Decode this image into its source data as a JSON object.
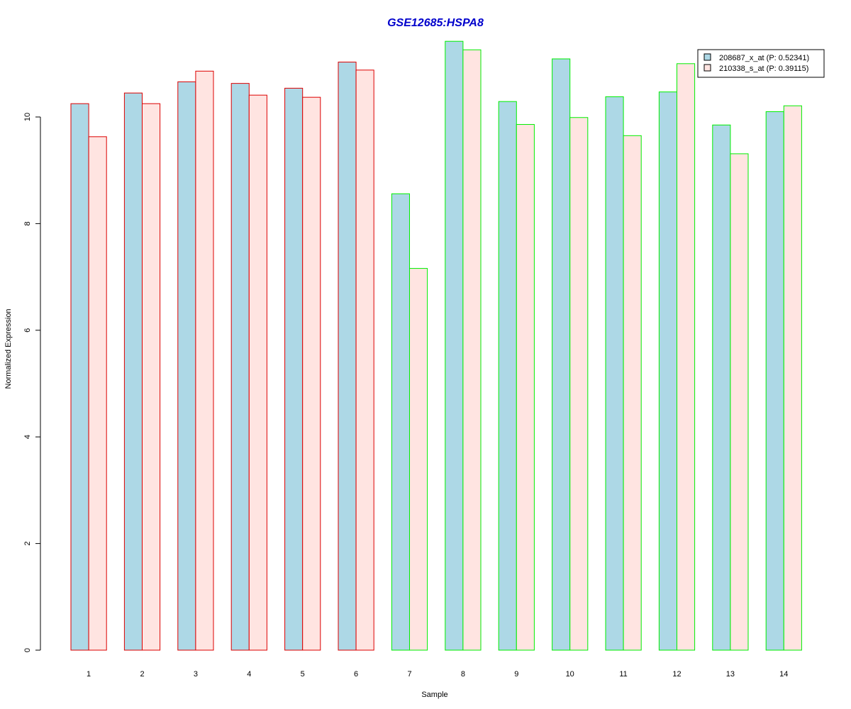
{
  "chart_data": {
    "type": "bar",
    "title": "GSE12685:HSPA8",
    "xlabel": "Sample",
    "ylabel": "Normalized Expression",
    "categories": [
      "1",
      "2",
      "3",
      "4",
      "5",
      "6",
      "7",
      "8",
      "9",
      "10",
      "11",
      "12",
      "13",
      "14"
    ],
    "yticks": [
      0,
      2,
      4,
      6,
      8,
      10
    ],
    "ylim": [
      0,
      11.4
    ],
    "group_border_colors": [
      "#dd0000",
      "#dd0000",
      "#dd0000",
      "#dd0000",
      "#dd0000",
      "#dd0000",
      "#00ee00",
      "#00ee00",
      "#00ee00",
      "#00ee00",
      "#00ee00",
      "#00ee00",
      "#00ee00",
      "#00ee00"
    ],
    "series": [
      {
        "name": "208687_x_at (P: 0.52341)",
        "fill": "#add8e6",
        "values": [
          10.25,
          10.45,
          10.66,
          10.63,
          10.54,
          11.03,
          8.56,
          11.42,
          10.29,
          11.09,
          10.38,
          10.47,
          9.85,
          10.1
        ]
      },
      {
        "name": "210338_s_at (P: 0.39115)",
        "fill": "#ffe4e1",
        "values": [
          9.63,
          10.25,
          10.86,
          10.41,
          10.37,
          10.88,
          7.16,
          11.26,
          9.86,
          9.99,
          9.65,
          11.0,
          9.31,
          10.21
        ]
      }
    ],
    "legend_position": "top-right",
    "title_color": "#0000cc",
    "grid": false
  }
}
